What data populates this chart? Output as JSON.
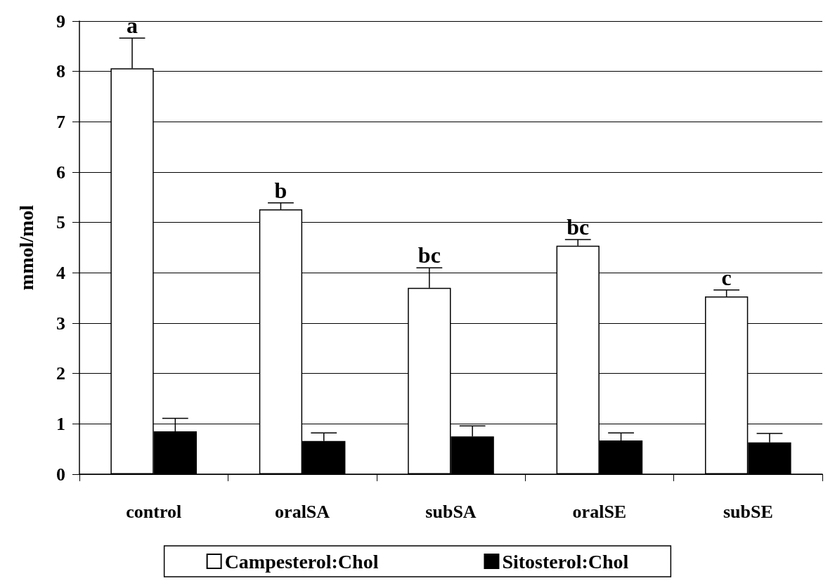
{
  "chart_data": {
    "type": "bar",
    "ylabel": "mmol/mol",
    "categories": [
      "control",
      "oralSA",
      "subSA",
      "oralSE",
      "subSE"
    ],
    "series": [
      {
        "name": "Campesterol:Chol",
        "color": "#ffffff",
        "values": [
          8.06,
          5.26,
          3.7,
          4.54,
          3.53
        ],
        "errors": [
          0.6,
          0.13,
          0.4,
          0.12,
          0.13
        ]
      },
      {
        "name": "Sitosterol:Chol",
        "color": "#000000",
        "values": [
          0.85,
          0.66,
          0.75,
          0.67,
          0.63
        ],
        "errors": [
          0.26,
          0.16,
          0.21,
          0.15,
          0.18
        ]
      }
    ],
    "ylim": [
      0,
      9
    ],
    "yticks": [
      0,
      1,
      2,
      3,
      4,
      5,
      6,
      7,
      8,
      9
    ],
    "grid": "y",
    "legend": "bottom",
    "annotations": [
      {
        "text": "a",
        "x": "control",
        "y": 8.06
      },
      {
        "text": "b",
        "x": "oralSA",
        "y": 5.26
      },
      {
        "text": "bc",
        "x": "subSA",
        "y": 3.7
      },
      {
        "text": "bc",
        "x": "oralSE",
        "y": 4.54
      },
      {
        "text": "c",
        "x": "subSE",
        "y": 3.53
      }
    ]
  }
}
